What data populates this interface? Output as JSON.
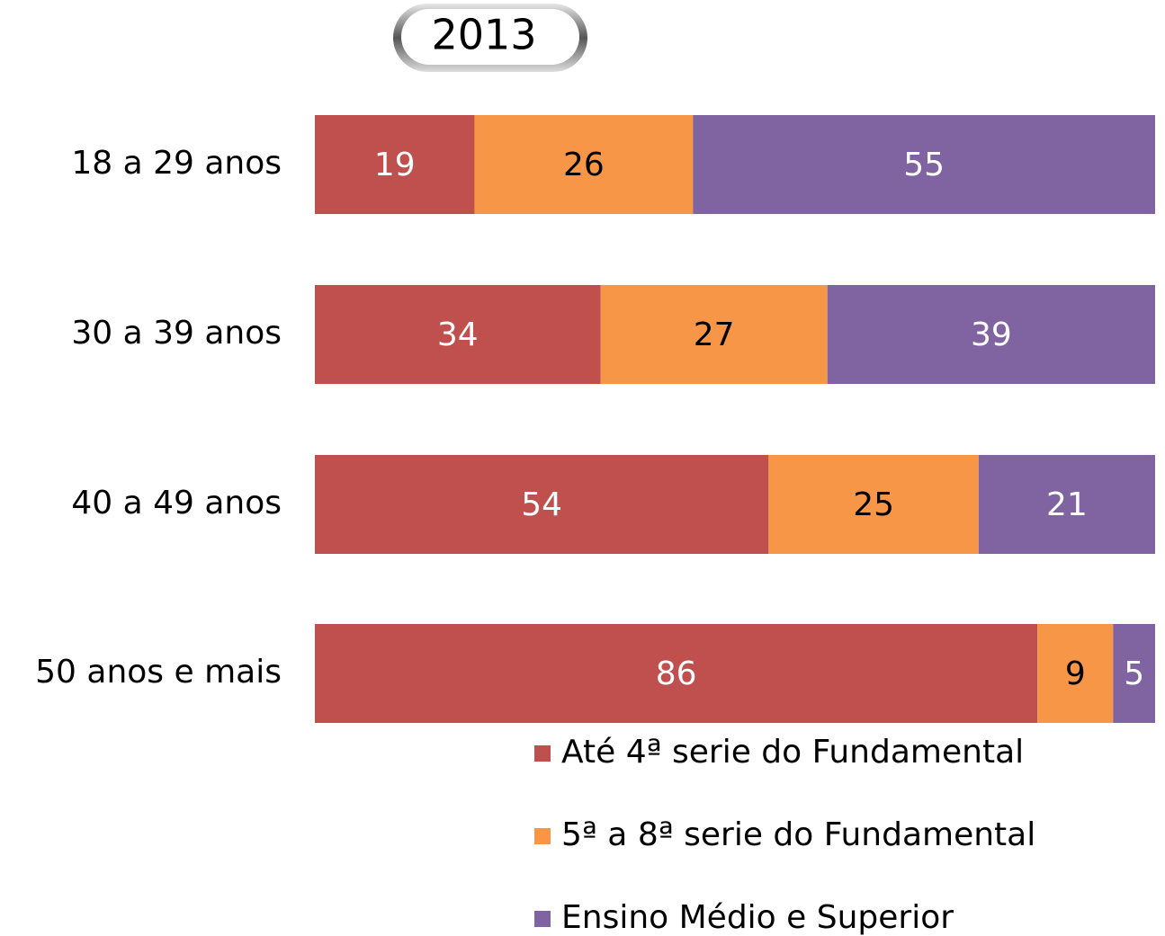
{
  "chart_data": {
    "type": "stacked_bar_horizontal",
    "title": "2013",
    "categories": [
      "18 a 29 anos",
      "30 a 39 anos",
      "40 a 49 anos",
      "50 anos e mais"
    ],
    "series": [
      {
        "name": "Até 4ª serie do Fundamental",
        "color": "#c0504d",
        "label_color": "#ffffff",
        "values": [
          19,
          34,
          54,
          86
        ]
      },
      {
        "name": "5ª a 8ª serie do Fundamental",
        "color": "#f79646",
        "label_color": "#000000",
        "values": [
          26,
          27,
          25,
          9
        ]
      },
      {
        "name": "Ensino Médio e Superior",
        "color": "#8064a2",
        "label_color": "#ffffff",
        "values": [
          55,
          39,
          21,
          5
        ]
      }
    ],
    "xlim": [
      0,
      100
    ]
  }
}
